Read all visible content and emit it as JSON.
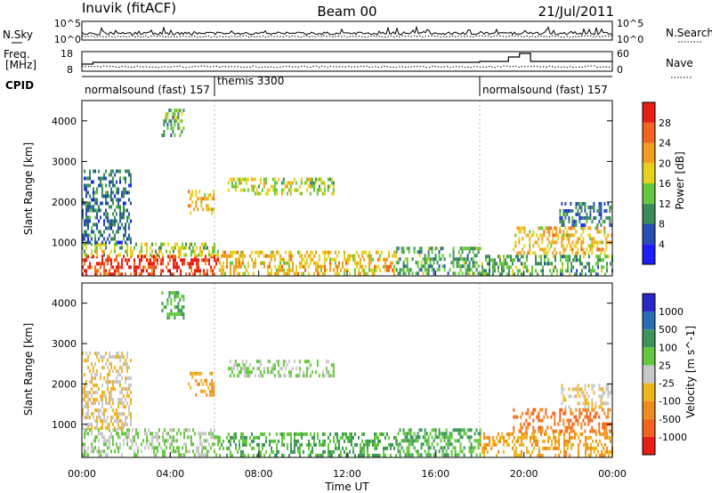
{
  "header": {
    "station": "Inuvik (fitACF)",
    "beam": "Beam 00",
    "date": "21/Jul/2011"
  },
  "noise_panel": {
    "left_label": "N.Sky",
    "right_label": "N.Search",
    "left_ticks": [
      "10^5",
      "10^0"
    ],
    "right_ticks": [
      "10^5",
      "10^0"
    ]
  },
  "freq_panel": {
    "left_label_1": "Freq.",
    "left_label_2": "[MHz]",
    "right_label": "Nave",
    "left_ticks": [
      "18",
      "8"
    ],
    "right_ticks": [
      "60",
      "0"
    ]
  },
  "cpid_panel": {
    "label": "CPID",
    "programs": [
      {
        "name": "normalsound (fast) 157",
        "start_hour": 0
      },
      {
        "name": "themis 3300",
        "start_hour": 6
      },
      {
        "name": "normalsound (fast) 157",
        "start_hour": 18
      }
    ]
  },
  "x_axis": {
    "label": "Time UT",
    "ticks": [
      "00:00",
      "04:00",
      "08:00",
      "12:00",
      "16:00",
      "20:00",
      "00:00"
    ]
  },
  "power_panel": {
    "ylabel": "Slant Range [km]",
    "yticks": [
      "1000",
      "2000",
      "3000",
      "4000"
    ],
    "colorbar_label": "Power [dB]",
    "colorbar_ticks": [
      "4",
      "8",
      "12",
      "16",
      "20",
      "24",
      "28"
    ],
    "colors": [
      "#1e1efa",
      "#2850b4",
      "#3c8c5a",
      "#64c83c",
      "#e6d21e",
      "#f0a01e",
      "#f0641e",
      "#e61e14"
    ]
  },
  "velocity_panel": {
    "ylabel": "Slant Range [km]",
    "yticks": [
      "1000",
      "2000",
      "3000",
      "4000"
    ],
    "colorbar_label": "Velocity [m s^-1]",
    "colorbar_ticks": [
      "1000",
      "500",
      "100",
      "25",
      "-25",
      "-100",
      "-500",
      "-1000"
    ],
    "colors": [
      "#2828c8",
      "#286eb4",
      "#3c965a",
      "#64c83c",
      "#c8c8c8",
      "#f0b41e",
      "#f08c1e",
      "#f0641e",
      "#e61e14"
    ]
  },
  "chart_data": {
    "type": "heatmap",
    "x_range_hours": [
      0,
      24
    ],
    "y_range_km": [
      180,
      4500
    ],
    "power_regions": [
      {
        "t0": 0,
        "t1": 6.2,
        "r0": 200,
        "r1": 700,
        "level": 28
      },
      {
        "t0": 0,
        "t1": 6.2,
        "r0": 700,
        "r1": 1000,
        "level": 16
      },
      {
        "t0": 0,
        "t1": 2.2,
        "r0": 1000,
        "r1": 2800,
        "level": 8
      },
      {
        "t0": 3.6,
        "t1": 4.6,
        "r0": 3600,
        "r1": 4300,
        "level": 12
      },
      {
        "t0": 4.8,
        "t1": 6.0,
        "r0": 1700,
        "r1": 2300,
        "level": 20
      },
      {
        "t0": 6.2,
        "t1": 14.2,
        "r0": 200,
        "r1": 800,
        "level": 20
      },
      {
        "t0": 6.6,
        "t1": 11.4,
        "r0": 2200,
        "r1": 2600,
        "level": 16
      },
      {
        "t0": 14.2,
        "t1": 18.0,
        "r0": 200,
        "r1": 900,
        "level": 12
      },
      {
        "t0": 18.0,
        "t1": 24.0,
        "r0": 200,
        "r1": 700,
        "level": 12
      },
      {
        "t0": 19.5,
        "t1": 24.0,
        "r0": 700,
        "r1": 1400,
        "level": 20
      },
      {
        "t0": 21.6,
        "t1": 24.0,
        "r0": 1400,
        "r1": 2000,
        "level": 8
      }
    ],
    "velocity_regions": [
      {
        "t0": 0,
        "t1": 6.2,
        "r0": 200,
        "r1": 900,
        "value": 25
      },
      {
        "t0": 0,
        "t1": 2.2,
        "r0": 900,
        "r1": 2800,
        "value": -25
      },
      {
        "t0": 3.6,
        "t1": 4.6,
        "r0": 3600,
        "r1": 4300,
        "value": 100
      },
      {
        "t0": 4.8,
        "t1": 6.0,
        "r0": 1700,
        "r1": 2300,
        "value": -100
      },
      {
        "t0": 6.2,
        "t1": 14.2,
        "r0": 200,
        "r1": 800,
        "value": 100
      },
      {
        "t0": 6.6,
        "t1": 11.4,
        "r0": 2200,
        "r1": 2600,
        "value": 25
      },
      {
        "t0": 14.2,
        "t1": 18.0,
        "r0": 200,
        "r1": 900,
        "value": 100
      },
      {
        "t0": 18.0,
        "t1": 24.0,
        "r0": 200,
        "r1": 800,
        "value": -100
      },
      {
        "t0": 19.5,
        "t1": 24.0,
        "r0": 800,
        "r1": 1400,
        "value": -500
      },
      {
        "t0": 21.6,
        "t1": 24.0,
        "r0": 1400,
        "r1": 2000,
        "value": -25
      }
    ]
  }
}
